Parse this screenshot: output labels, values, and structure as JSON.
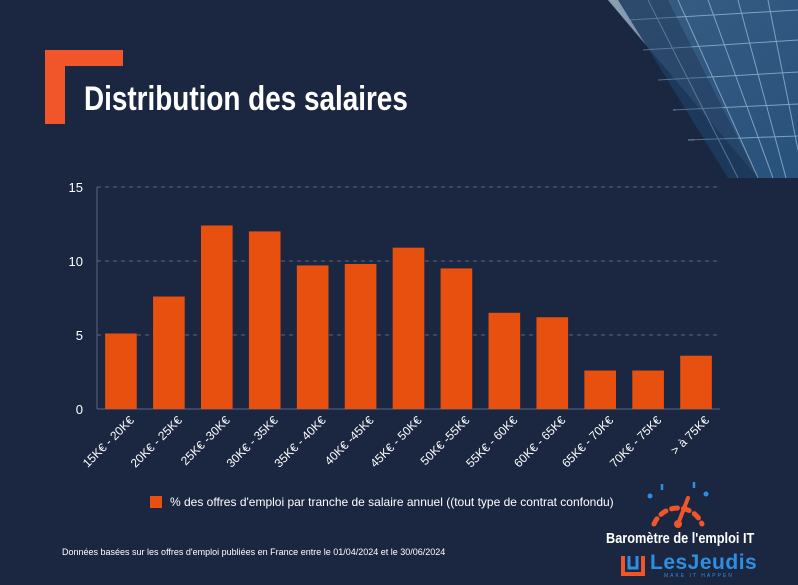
{
  "title": "Distribution des salaires",
  "legend_label": "% des offres d'emploi par tranche de salaire annuel ((tout type de contrat confondu)",
  "footnote": "Données basées sur les  offres d'emploi publiées en France entre le 01/04/2024 et le 30/06/2024",
  "brand": {
    "barometre": "Baromètre de l'emploi IT",
    "name": "LesJeudis",
    "tagline": "MAKE IT HAPPEN"
  },
  "colors": {
    "background": "#1b2741",
    "bar": "#e8500f",
    "accent": "#f0562a",
    "grid": "#5a6683",
    "text": "#ffffff",
    "brand_blue": "#2f8ee0"
  },
  "chart_data": {
    "type": "bar",
    "title": "Distribution des salaires",
    "categories": [
      "15K€ - 20K€",
      "20K€ - 25K€",
      "25K€ -30K€",
      "30K€ - 35K€",
      "35K€ - 40K€",
      "40K€ -45K€",
      "45K€ - 50K€",
      "50K€ -55K€",
      "55K€ - 60K€",
      "60K€ - 65K€",
      "65K€ - 70K€",
      "70K€ - 75K€",
      "> à 75K€"
    ],
    "series": [
      {
        "name": "% des offres d'emploi par tranche de salaire annuel ((tout type de contrat confondu)",
        "values": [
          5.1,
          7.6,
          12.4,
          12.0,
          9.7,
          9.8,
          10.9,
          9.5,
          6.5,
          6.2,
          2.6,
          2.6,
          3.6
        ]
      }
    ],
    "ylim": [
      0,
      15
    ],
    "yticks": [
      0,
      5,
      10,
      15
    ],
    "grid": true,
    "legend_position": "bottom",
    "xlabel": "",
    "ylabel": ""
  }
}
